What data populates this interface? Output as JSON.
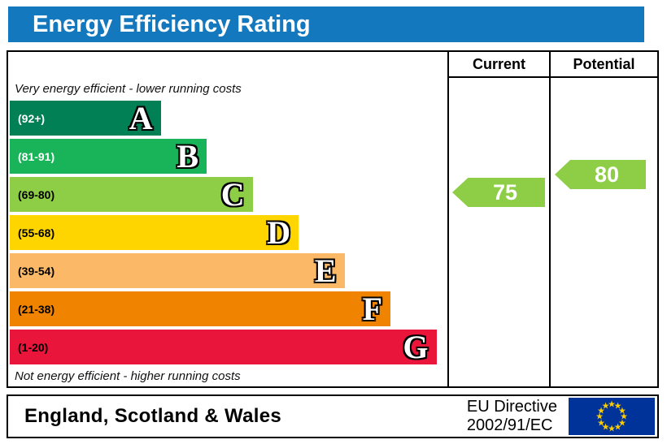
{
  "title": "Energy Efficiency Rating",
  "accent_color": "#1478be",
  "columns": {
    "current": "Current",
    "potential": "Potential"
  },
  "captions": {
    "top": "Very energy efficient - lower running costs",
    "bottom": "Not energy efficient - higher running costs"
  },
  "bands": [
    {
      "letter": "A",
      "range": "(92+)",
      "color": "#008054",
      "label_color": "#ffffff",
      "width_pct": 34.5
    },
    {
      "letter": "B",
      "range": "(81-91)",
      "color": "#19b459",
      "label_color": "#ffffff",
      "width_pct": 45
    },
    {
      "letter": "C",
      "range": "(69-80)",
      "color": "#8dce46",
      "label_color": "#000000",
      "width_pct": 55.5
    },
    {
      "letter": "D",
      "range": "(55-68)",
      "color": "#ffd500",
      "label_color": "#000000",
      "width_pct": 66
    },
    {
      "letter": "E",
      "range": "(39-54)",
      "color": "#fbb968",
      "label_color": "#000000",
      "width_pct": 76.5
    },
    {
      "letter": "F",
      "range": "(21-38)",
      "color": "#f08300",
      "label_color": "#000000",
      "width_pct": 87
    },
    {
      "letter": "G",
      "range": "(1-20)",
      "color": "#e9153b",
      "label_color": "#000000",
      "width_pct": 97.5
    }
  ],
  "ratings": {
    "current": {
      "value": "75",
      "color": "#8dce46"
    },
    "potential": {
      "value": "80",
      "color": "#8dce46"
    }
  },
  "footer": {
    "region": "England, Scotland & Wales",
    "directive_line1": "EU Directive",
    "directive_line2": "2002/91/EC",
    "flag_colors": {
      "field": "#003399",
      "stars": "#ffcc00"
    }
  },
  "chart_data": {
    "type": "bar",
    "title": "Energy Efficiency Rating",
    "categories": [
      "A",
      "B",
      "C",
      "D",
      "E",
      "F",
      "G"
    ],
    "ranges": [
      "92+",
      "81-91",
      "69-80",
      "55-68",
      "39-54",
      "21-38",
      "1-20"
    ],
    "band_colors": [
      "#008054",
      "#19b459",
      "#8dce46",
      "#ffd500",
      "#fbb968",
      "#f08300",
      "#e9153b"
    ],
    "series": [
      {
        "name": "Current",
        "value": 75,
        "band": "C"
      },
      {
        "name": "Potential",
        "value": 80,
        "band": "C"
      }
    ],
    "annotations": [
      "Very energy efficient - lower running costs",
      "Not energy efficient - higher running costs"
    ],
    "footer_region": "England, Scotland & Wales",
    "footer_directive": "EU Directive 2002/91/EC"
  }
}
